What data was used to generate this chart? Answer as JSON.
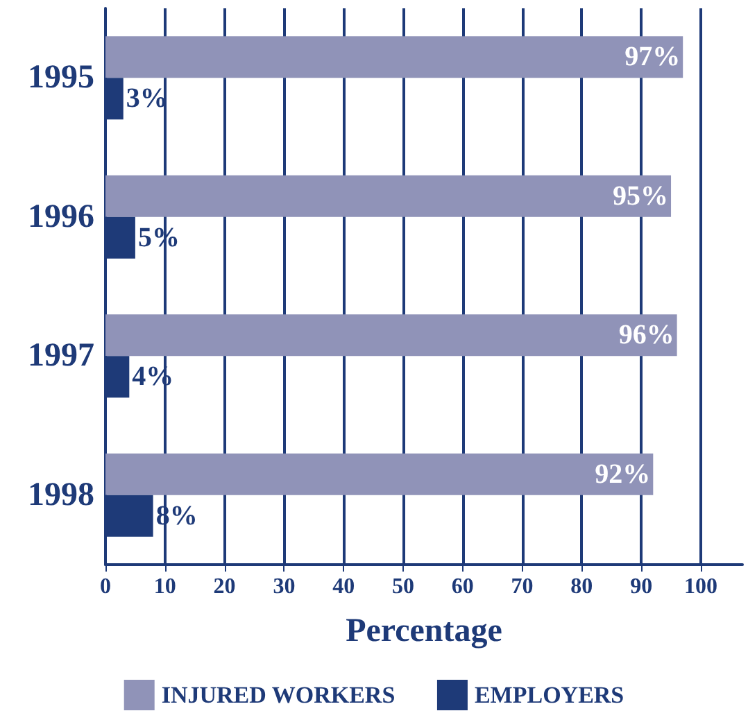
{
  "chart_data": {
    "type": "bar",
    "orientation": "horizontal",
    "xlabel": "Percentage",
    "categories": [
      "1995",
      "1996",
      "1997",
      "1998"
    ],
    "series": [
      {
        "name": "INJURED WORKERS",
        "color": "#9093b8",
        "values": [
          97,
          95,
          96,
          92
        ],
        "value_labels": [
          "97%",
          "95%",
          "96%",
          "92%"
        ]
      },
      {
        "name": "EMPLOYERS",
        "color": "#1e3a78",
        "values": [
          3,
          5,
          4,
          8
        ],
        "value_labels": [
          "3%",
          "5%",
          "4%",
          "8%"
        ]
      }
    ],
    "xlim": [
      0,
      107
    ],
    "xticks": [
      0,
      10,
      20,
      30,
      40,
      50,
      60,
      70,
      80,
      90,
      100
    ],
    "grid": "x",
    "legend": "bottom"
  }
}
